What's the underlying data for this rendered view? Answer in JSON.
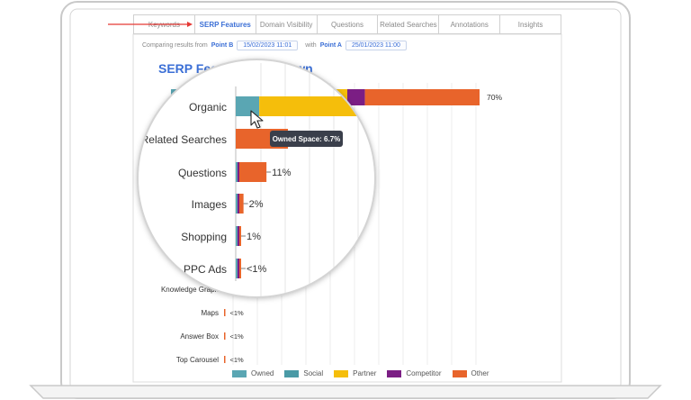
{
  "tabs": [
    {
      "label": "Keywords",
      "active": false
    },
    {
      "label": "SERP Features",
      "active": true
    },
    {
      "label": "Domain Visibility",
      "active": false
    },
    {
      "label": "Questions",
      "active": false
    },
    {
      "label": "Related Searches",
      "active": false
    },
    {
      "label": "Annotations",
      "active": false
    },
    {
      "label": "Insights",
      "active": false
    }
  ],
  "comparison": {
    "prefix": "Comparing results from",
    "point_b_label": "Point B",
    "point_b_date": "15/02/2023 11:01",
    "with_label": "with",
    "point_a_label": "Point A",
    "point_a_date": "25/01/2023 11:00"
  },
  "tooltip": {
    "text": "Owned Space: 6.7%"
  },
  "chart_data": {
    "type": "bar",
    "orientation": "horizontal",
    "stacked": true,
    "title": "SERP Feature Breakdown",
    "categories": [
      "Organic",
      "Related Searches",
      "Questions",
      "Images",
      "Shopping",
      "PPC Ads",
      "Knowledge Graph",
      "Maps",
      "Answer Box",
      "Top Carousel"
    ],
    "value_labels": [
      "70%",
      "",
      "11%",
      "2%",
      "1%",
      "<1%",
      "",
      "<1%",
      "<1%",
      "<1%"
    ],
    "magnified_categories": [
      "Organic",
      "Related Searches",
      "Questions",
      "Images",
      "Shopping",
      "PPC Ads"
    ],
    "series": [
      {
        "name": "Owned",
        "color": "#5aa6b3",
        "values": [
          6.7,
          0,
          0.3,
          0.3,
          0.3,
          0.1,
          0,
          0,
          0,
          0
        ]
      },
      {
        "name": "Social",
        "color": "#4a9aa6",
        "values": [
          0,
          0,
          0,
          0,
          0,
          0,
          0,
          0,
          0,
          0
        ]
      },
      {
        "name": "Partner",
        "color": "#f5be0b",
        "values": [
          33.3,
          0,
          0,
          0,
          0,
          0,
          0,
          0,
          0,
          0
        ]
      },
      {
        "name": "Competitor",
        "color": "#7b1e84",
        "values": [
          4,
          0,
          0.3,
          0.1,
          0.1,
          0.3,
          0,
          0,
          0,
          0
        ]
      },
      {
        "name": "Other",
        "color": "#e8642b",
        "values": [
          26,
          20,
          10.4,
          1.6,
          0.6,
          0.3,
          0.3,
          0.1,
          0.1,
          0.1
        ]
      }
    ],
    "xlim": [
      0,
      70
    ],
    "grid": true,
    "legend_position": "bottom"
  }
}
